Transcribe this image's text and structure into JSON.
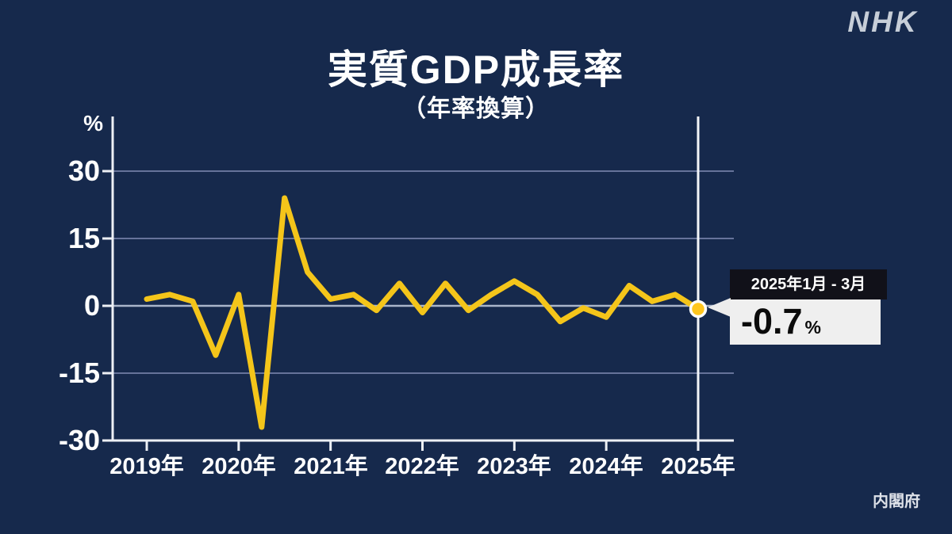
{
  "logo": {
    "text": "NHK"
  },
  "title": {
    "main": "実質GDP成長率",
    "subtitle": "（年率換算）"
  },
  "source": {
    "text": "内閣府"
  },
  "callout": {
    "period": "2025年1月 - 3月",
    "value": "-0.7",
    "unit": "%"
  },
  "chart_data": {
    "type": "line",
    "title": "実質GDP成長率（年率換算）",
    "unit_label": "%",
    "xlabel": "",
    "ylabel": "%",
    "ylim": [
      -30,
      30
    ],
    "grid": true,
    "y_ticks": [
      30,
      15,
      0,
      -15,
      -30
    ],
    "y_tick_labels": [
      "30",
      "15",
      "0",
      "-15",
      "-30"
    ],
    "x_tick_labels": [
      "2019年",
      "2020年",
      "2021年",
      "2022年",
      "2023年",
      "2024年",
      "2025年"
    ],
    "x": [
      "2019Q1",
      "2019Q2",
      "2019Q3",
      "2019Q4",
      "2020Q1",
      "2020Q2",
      "2020Q3",
      "2020Q4",
      "2021Q1",
      "2021Q2",
      "2021Q3",
      "2021Q4",
      "2022Q1",
      "2022Q2",
      "2022Q3",
      "2022Q4",
      "2023Q1",
      "2023Q2",
      "2023Q3",
      "2023Q4",
      "2024Q1",
      "2024Q2",
      "2024Q3",
      "2024Q4",
      "2025Q1"
    ],
    "values": [
      1.5,
      2.5,
      1,
      -11,
      2.5,
      -27,
      24,
      7.5,
      1.5,
      2.5,
      -1,
      5,
      -1.5,
      5,
      -1,
      2.5,
      5.5,
      2.5,
      -3.5,
      -0.5,
      -2.5,
      4.5,
      1,
      2.5,
      -0.7
    ],
    "highlight": {
      "index": 24,
      "label": "2025年1月 - 3月",
      "value": -0.7
    },
    "colors": {
      "background": "#16294c",
      "line": "#f4c51a",
      "dot_fill": "#ffc61e",
      "dot_ring": "#ffffff",
      "grid": "#66739a",
      "zero_grid": "#a9b5ca",
      "axis": "#edf0f5",
      "highlight_line": "#f4f6f9",
      "callout_header_bg": "#111119",
      "callout_body_bg": "#efefef"
    }
  }
}
